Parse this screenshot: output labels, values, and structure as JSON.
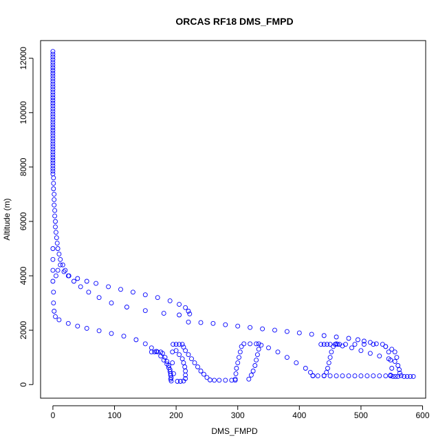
{
  "chart_data": {
    "type": "scatter",
    "title": "ORCAS RF18 DMS_FMPD",
    "xlabel": "DMS_FMPD",
    "ylabel": "Altitude (m)",
    "xlim": [
      -20,
      605
    ],
    "ylim": [
      -500,
      12650
    ],
    "xticks": [
      0,
      100,
      200,
      300,
      400,
      500,
      600
    ],
    "yticks": [
      0,
      2000,
      4000,
      6000,
      8000,
      10000,
      12000
    ],
    "grid": false,
    "marker": "open-circle",
    "marker_color": "#0000ff",
    "series": [
      {
        "points": [
          [
            0,
            12250
          ],
          [
            0,
            12150
          ],
          [
            0,
            12050
          ],
          [
            0,
            11950
          ],
          [
            0,
            11850
          ],
          [
            0,
            11750
          ],
          [
            0,
            11650
          ],
          [
            0,
            11550
          ],
          [
            0,
            11450
          ],
          [
            0,
            11350
          ],
          [
            0,
            11250
          ],
          [
            0,
            11150
          ],
          [
            0,
            11050
          ],
          [
            0,
            10950
          ],
          [
            0,
            10850
          ],
          [
            0,
            10750
          ],
          [
            0,
            10650
          ],
          [
            0,
            10550
          ],
          [
            0,
            10450
          ],
          [
            0,
            10350
          ],
          [
            0,
            10250
          ],
          [
            0,
            10150
          ],
          [
            0,
            10050
          ],
          [
            0,
            9950
          ],
          [
            0,
            9850
          ],
          [
            0,
            9750
          ],
          [
            0,
            9650
          ],
          [
            0,
            9550
          ],
          [
            0,
            9450
          ],
          [
            0,
            9350
          ],
          [
            0,
            9250
          ],
          [
            0,
            9150
          ],
          [
            0,
            9050
          ],
          [
            0,
            8950
          ],
          [
            0,
            8850
          ],
          [
            0,
            8750
          ],
          [
            0,
            8650
          ],
          [
            0,
            8550
          ],
          [
            0,
            8450
          ],
          [
            0,
            8350
          ],
          [
            0,
            8250
          ],
          [
            0,
            8150
          ],
          [
            0,
            8050
          ],
          [
            0,
            7950
          ],
          [
            0,
            7850
          ],
          [
            0,
            7750
          ],
          [
            1,
            7600
          ],
          [
            1,
            7400
          ],
          [
            1,
            7200
          ],
          [
            2,
            7000
          ],
          [
            2,
            6800
          ],
          [
            2,
            6600
          ],
          [
            3,
            6400
          ],
          [
            3,
            6200
          ],
          [
            4,
            6000
          ],
          [
            4,
            5800
          ],
          [
            5,
            5600
          ],
          [
            6,
            5400
          ],
          [
            7,
            5200
          ],
          [
            8,
            5000
          ],
          [
            10,
            4800
          ],
          [
            12,
            4600
          ],
          [
            16,
            4400
          ],
          [
            20,
            4200
          ],
          [
            26,
            4000
          ],
          [
            34,
            3800
          ],
          [
            45,
            3600
          ],
          [
            58,
            3400
          ],
          [
            75,
            3200
          ],
          [
            95,
            3000
          ],
          [
            120,
            2850
          ],
          [
            150,
            2720
          ],
          [
            180,
            2620
          ],
          [
            205,
            2560
          ],
          [
            5,
            4000
          ],
          [
            8,
            4200
          ],
          [
            12,
            4400
          ],
          [
            18,
            4150
          ],
          [
            25,
            4000
          ],
          [
            40,
            3900
          ],
          [
            55,
            3800
          ],
          [
            70,
            3720
          ],
          [
            90,
            3600
          ],
          [
            110,
            3500
          ],
          [
            130,
            3400
          ],
          [
            150,
            3300
          ],
          [
            170,
            3200
          ],
          [
            190,
            3080
          ],
          [
            205,
            2950
          ],
          [
            215,
            2830
          ],
          [
            220,
            2700
          ],
          [
            222,
            2600
          ],
          [
            0,
            5000
          ],
          [
            0,
            4600
          ],
          [
            0,
            4200
          ],
          [
            0,
            3800
          ],
          [
            1,
            3400
          ],
          [
            1,
            3000
          ],
          [
            2,
            2700
          ],
          [
            4,
            2500
          ],
          [
            10,
            2380
          ],
          [
            25,
            2250
          ],
          [
            40,
            2150
          ],
          [
            55,
            2070
          ],
          [
            75,
            1980
          ],
          [
            95,
            1880
          ],
          [
            115,
            1780
          ],
          [
            135,
            1650
          ],
          [
            150,
            1500
          ],
          [
            160,
            1350
          ],
          [
            168,
            1220
          ],
          [
            160,
            1200
          ],
          [
            165,
            1200
          ],
          [
            170,
            1200
          ],
          [
            175,
            1200
          ],
          [
            178,
            1150
          ],
          [
            182,
            1000
          ],
          [
            185,
            850
          ],
          [
            188,
            700
          ],
          [
            190,
            550
          ],
          [
            191,
            400
          ],
          [
            192,
            250
          ],
          [
            192,
            130
          ],
          [
            175,
            1050
          ],
          [
            180,
            900
          ],
          [
            185,
            760
          ],
          [
            188,
            620
          ],
          [
            190,
            480
          ],
          [
            191,
            340
          ],
          [
            191,
            200
          ],
          [
            195,
            1480
          ],
          [
            200,
            1480
          ],
          [
            205,
            1480
          ],
          [
            210,
            1480
          ],
          [
            212,
            1380
          ],
          [
            215,
            1250
          ],
          [
            220,
            1100
          ],
          [
            225,
            950
          ],
          [
            230,
            800
          ],
          [
            235,
            650
          ],
          [
            240,
            500
          ],
          [
            245,
            380
          ],
          [
            250,
            260
          ],
          [
            255,
            170
          ],
          [
            262,
            160
          ],
          [
            270,
            160
          ],
          [
            280,
            160
          ],
          [
            290,
            160
          ],
          [
            296,
            160
          ],
          [
            200,
            1250
          ],
          [
            205,
            1100
          ],
          [
            210,
            950
          ],
          [
            212,
            800
          ],
          [
            214,
            650
          ],
          [
            215,
            500
          ],
          [
            215,
            350
          ],
          [
            215,
            220
          ],
          [
            212,
            130
          ],
          [
            207,
            120
          ],
          [
            202,
            120
          ],
          [
            196,
            400
          ],
          [
            194,
            800
          ],
          [
            194,
            1200
          ],
          [
            296,
            200
          ],
          [
            297,
            400
          ],
          [
            298,
            600
          ],
          [
            300,
            800
          ],
          [
            302,
            1000
          ],
          [
            304,
            1200
          ],
          [
            306,
            1400
          ],
          [
            310,
            1500
          ],
          [
            320,
            1500
          ],
          [
            330,
            1500
          ],
          [
            334,
            1500
          ],
          [
            334,
            1300
          ],
          [
            332,
            1100
          ],
          [
            330,
            900
          ],
          [
            328,
            700
          ],
          [
            325,
            500
          ],
          [
            322,
            350
          ],
          [
            318,
            200
          ],
          [
            338,
            1450
          ],
          [
            350,
            1350
          ],
          [
            365,
            1200
          ],
          [
            380,
            1000
          ],
          [
            395,
            800
          ],
          [
            410,
            600
          ],
          [
            418,
            450
          ],
          [
            422,
            330
          ],
          [
            422,
            320
          ],
          [
            430,
            320
          ],
          [
            440,
            320
          ],
          [
            450,
            320
          ],
          [
            460,
            320
          ],
          [
            470,
            320
          ],
          [
            480,
            320
          ],
          [
            490,
            320
          ],
          [
            500,
            320
          ],
          [
            510,
            320
          ],
          [
            520,
            320
          ],
          [
            530,
            320
          ],
          [
            540,
            320
          ],
          [
            548,
            320
          ],
          [
            548,
            350
          ],
          [
            550,
            600
          ],
          [
            548,
            900
          ],
          [
            545,
            1200
          ],
          [
            540,
            1400
          ],
          [
            535,
            1480
          ],
          [
            520,
            1480
          ],
          [
            505,
            1480
          ],
          [
            490,
            1480
          ],
          [
            475,
            1480
          ],
          [
            462,
            1480
          ],
          [
            455,
            1400
          ],
          [
            452,
            1200
          ],
          [
            450,
            1000
          ],
          [
            448,
            800
          ],
          [
            446,
            600
          ],
          [
            444,
            450
          ],
          [
            440,
            330
          ],
          [
            435,
            1480
          ],
          [
            440,
            1480
          ],
          [
            445,
            1480
          ],
          [
            450,
            1480
          ],
          [
            458,
            1480
          ],
          [
            465,
            1480
          ],
          [
            460,
            1500
          ],
          [
            470,
            1420
          ],
          [
            485,
            1350
          ],
          [
            500,
            1250
          ],
          [
            515,
            1150
          ],
          [
            530,
            1050
          ],
          [
            545,
            950
          ],
          [
            555,
            850
          ],
          [
            560,
            700
          ],
          [
            562,
            550
          ],
          [
            563,
            420
          ],
          [
            565,
            330
          ],
          [
            570,
            300
          ],
          [
            575,
            300
          ],
          [
            580,
            300
          ],
          [
            585,
            300
          ],
          [
            552,
            300
          ],
          [
            556,
            300
          ],
          [
            560,
            300
          ],
          [
            220,
            2300
          ],
          [
            240,
            2280
          ],
          [
            260,
            2250
          ],
          [
            280,
            2200
          ],
          [
            300,
            2150
          ],
          [
            320,
            2100
          ],
          [
            340,
            2050
          ],
          [
            360,
            2000
          ],
          [
            380,
            1950
          ],
          [
            400,
            1900
          ],
          [
            420,
            1850
          ],
          [
            440,
            1800
          ],
          [
            460,
            1750
          ],
          [
            480,
            1700
          ],
          [
            495,
            1650
          ],
          [
            505,
            1600
          ],
          [
            515,
            1550
          ],
          [
            525,
            1500
          ],
          [
            540,
            1400
          ],
          [
            550,
            1300
          ],
          [
            555,
            1200
          ],
          [
            558,
            1000
          ]
        ]
      }
    ]
  }
}
